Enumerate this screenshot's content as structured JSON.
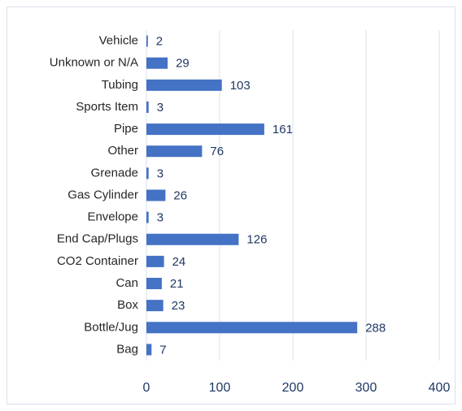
{
  "chart_data": {
    "type": "bar",
    "orientation": "horizontal",
    "categories": [
      "Vehicle",
      "Unknown or N/A",
      "Tubing",
      "Sports Item",
      "Pipe",
      "Other",
      "Grenade",
      "Gas Cylinder",
      "Envelope",
      "End Cap/Plugs",
      "CO2 Container",
      "Can",
      "Box",
      "Bottle/Jug",
      "Bag"
    ],
    "values": [
      2,
      29,
      103,
      3,
      161,
      76,
      3,
      26,
      3,
      126,
      24,
      21,
      23,
      288,
      7
    ],
    "color": "#4472c4",
    "xlim": [
      0,
      400
    ],
    "xticks": [
      0,
      100,
      200,
      300,
      400
    ],
    "grid": true
  }
}
